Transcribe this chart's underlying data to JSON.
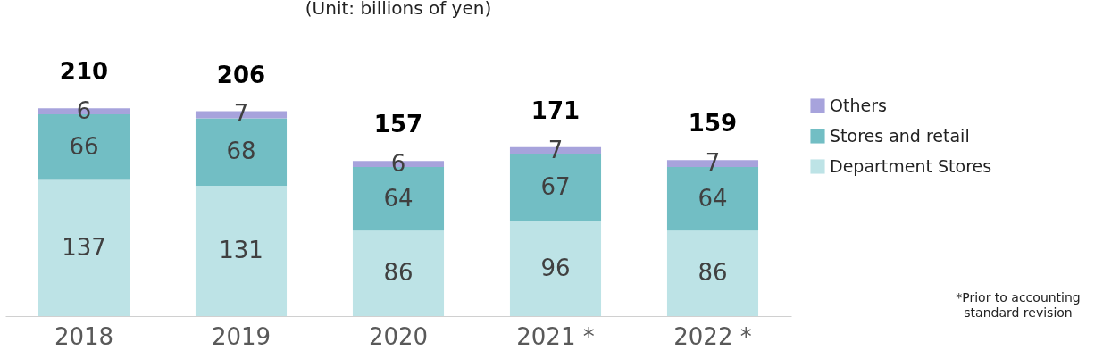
{
  "chart_data": {
    "type": "bar",
    "stacked": true,
    "title": "(Unit: billions of yen)",
    "categories": [
      "2018",
      "2019",
      "2020",
      "2021 *",
      "2022 *"
    ],
    "series": [
      {
        "name": "Department Stores",
        "color": "#bde3e6",
        "values": [
          137,
          131,
          86,
          96,
          86
        ]
      },
      {
        "name": "Stores and retail",
        "color": "#72bec4",
        "values": [
          66,
          68,
          64,
          67,
          64
        ]
      },
      {
        "name": "Others",
        "color": "#a7a3dc",
        "values": [
          6,
          7,
          6,
          7,
          7
        ]
      }
    ],
    "data_labels": true,
    "totals": [
      "210",
      "206",
      "157",
      "171",
      "159"
    ],
    "legend": "right",
    "annotations": [
      "*Prior to accounting standard revision"
    ]
  }
}
